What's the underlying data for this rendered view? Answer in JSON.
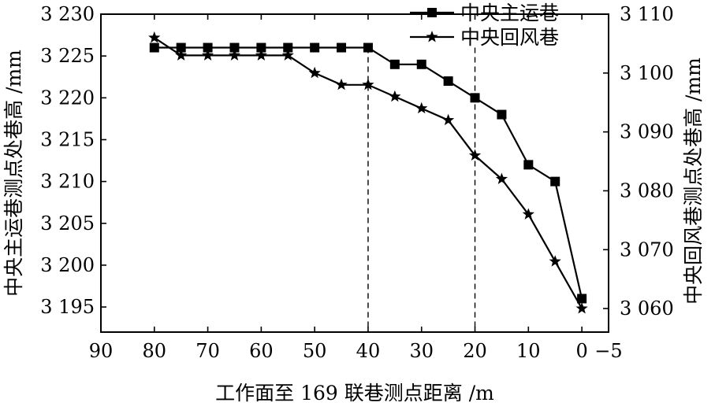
{
  "chart_data": {
    "type": "line",
    "x": [
      80,
      75,
      70,
      65,
      60,
      55,
      50,
      45,
      40,
      35,
      30,
      25,
      20,
      15,
      10,
      5,
      0
    ],
    "xlim": [
      90,
      -5
    ],
    "x_ticks": [
      90,
      80,
      70,
      60,
      50,
      40,
      30,
      20,
      10,
      0,
      -5
    ],
    "x_tick_labels": [
      "90",
      "80",
      "70",
      "60",
      "50",
      "40",
      "30",
      "20",
      "10",
      "0",
      "−5"
    ],
    "xlabel": "工作面至 169 联巷测点距离 /m",
    "left_axis": {
      "label": "中央主运巷测点处巷高 /mm",
      "ylim": [
        3192,
        3230
      ],
      "ticks": [
        3195,
        3200,
        3205,
        3210,
        3215,
        3220,
        3225,
        3230
      ],
      "tick_labels": [
        "3 195",
        "3 200",
        "3 205",
        "3 210",
        "3 215",
        "3 220",
        "3 225",
        "3 230"
      ]
    },
    "right_axis": {
      "label": "中央回风巷测点处巷高 /mm",
      "ylim": [
        3056,
        3110
      ],
      "ticks": [
        3060,
        3070,
        3080,
        3090,
        3100,
        3110
      ],
      "tick_labels": [
        "3 060",
        "3 070",
        "3 080",
        "3 090",
        "3 100",
        "3 110"
      ]
    },
    "series": [
      {
        "name": "中央主运巷",
        "axis": "left",
        "marker": "square",
        "values": [
          3226,
          3226,
          3226,
          3226,
          3226,
          3226,
          3226,
          3226,
          3226,
          3224,
          3224,
          3222,
          3220,
          3218,
          3212,
          3210,
          3196
        ]
      },
      {
        "name": "中央回风巷",
        "axis": "right",
        "marker": "star",
        "values": [
          3106,
          3103,
          3103,
          3103,
          3103,
          3103,
          3100,
          3098,
          3098,
          3096,
          3094,
          3092,
          3086,
          3082,
          3076,
          3068,
          3060
        ]
      }
    ],
    "reference_lines_x": [
      40,
      20
    ],
    "legend_position": "top-right",
    "grid": false
  }
}
